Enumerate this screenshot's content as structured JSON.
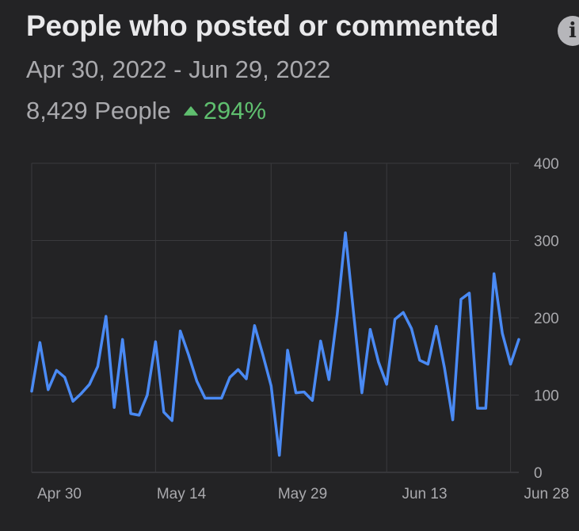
{
  "header": {
    "title": "People who posted or commented",
    "info_icon": "info-icon",
    "info_symbol": "i",
    "date_range": "Apr 30, 2022 - Jun 29, 2022",
    "total": "8,429 People",
    "change": "294%",
    "change_icon": "triangle-up-icon",
    "change_color": "#5fbf6f"
  },
  "chart_data": {
    "type": "line",
    "x_tick_labels": [
      "Apr 30",
      "May 14",
      "May 29",
      "Jun 13",
      "Jun 28"
    ],
    "x_tick_index": [
      2,
      16,
      30,
      44,
      58
    ],
    "y_ticks": [
      0,
      100,
      200,
      300,
      400
    ],
    "ylim": [
      0,
      400
    ],
    "line_color": "#4a8af4",
    "grid": true,
    "series": [
      {
        "values": [
          105,
          168,
          107,
          132,
          123,
          92,
          102,
          114,
          137,
          202,
          84,
          172,
          76,
          74,
          100,
          169,
          78,
          67,
          183,
          152,
          118,
          96,
          96,
          96,
          123,
          133,
          121,
          190,
          152,
          112,
          22,
          158,
          103,
          104,
          93,
          170,
          120,
          204,
          310,
          205,
          103,
          185,
          143,
          114,
          198,
          207,
          186,
          145,
          140,
          189,
          135,
          68,
          224,
          232,
          83,
          83,
          257,
          180,
          140,
          172
        ]
      }
    ]
  }
}
